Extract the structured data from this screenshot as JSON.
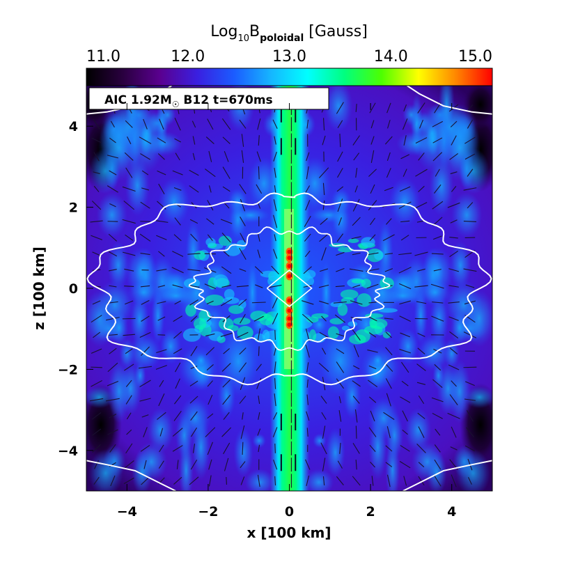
{
  "chart_data": {
    "type": "heatmap",
    "title": "",
    "colorbar": {
      "label_main": "Log",
      "label_sub1": "10",
      "label_var": "B",
      "label_sub2": "poloidal",
      "label_unit": "[Gauss]",
      "range": [
        11.0,
        15.0
      ],
      "ticks": [
        "11.0",
        "12.0",
        "13.0",
        "14.0",
        "15.0"
      ],
      "colors": [
        "#000000",
        "#2a0040",
        "#5a0090",
        "#3a1fe0",
        "#1b5cff",
        "#16b6ff",
        "#00ffff",
        "#00ff7f",
        "#4dff00",
        "#ffff00",
        "#ff8800",
        "#ff0000"
      ]
    },
    "annotation": {
      "prefix": "AIC 1.92M",
      "sun_symbol": "☉",
      "suffix": " B12 t=670ms"
    },
    "xlabel": "x [100 km]",
    "ylabel": "z [100 km]",
    "xlim": [
      -5,
      5
    ],
    "ylim": [
      -5,
      5
    ],
    "xticks": [
      -4,
      -2,
      0,
      2,
      4
    ],
    "yticks": [
      -4,
      -2,
      0,
      2,
      4
    ],
    "xtick_labels": [
      "−4",
      "−2",
      "0",
      "2",
      "4"
    ],
    "ytick_labels": [
      "−4",
      "−2",
      "0",
      "2",
      "4"
    ],
    "features": {
      "outer_shock_halfwidth": 4.7,
      "outer_shock_halfheight": 2.0,
      "inner_contour_halfwidth": 2.3,
      "inner_contour_halfheight": 1.2,
      "jet_halfwidth": 0.3,
      "log_field_background": 12.0,
      "log_field_jet": 13.5,
      "log_field_core": 15.0
    }
  }
}
